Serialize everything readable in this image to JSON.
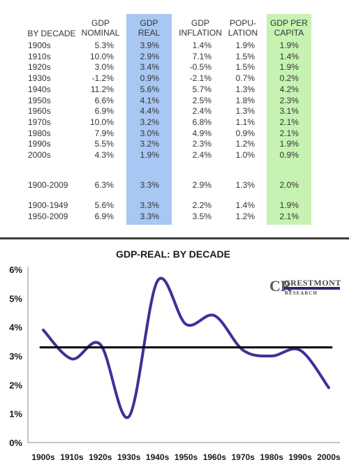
{
  "table": {
    "headers": {
      "decade": [
        "BY DECADE"
      ],
      "nominal": [
        "GDP",
        "NOMINAL"
      ],
      "real": [
        "GDP",
        "REAL"
      ],
      "inflation": [
        "GDP",
        "INFLATION"
      ],
      "population": [
        "POPU-",
        "LATION"
      ],
      "capita": [
        "GDP PER",
        "CAPITA"
      ]
    },
    "rows": [
      {
        "decade": "1900s",
        "nominal": "5.3%",
        "real": "3.9%",
        "inflation": "1.4%",
        "population": "1.9%",
        "capita": "1.9%"
      },
      {
        "decade": "1910s",
        "nominal": "10.0%",
        "real": "2.9%",
        "inflation": "7.1%",
        "population": "1.5%",
        "capita": "1.4%"
      },
      {
        "decade": "1920s",
        "nominal": "3.0%",
        "real": "3.4%",
        "inflation": "-0.5%",
        "population": "1.5%",
        "capita": "1.9%"
      },
      {
        "decade": "1930s",
        "nominal": "-1.2%",
        "real": "0.9%",
        "inflation": "-2.1%",
        "population": "0.7%",
        "capita": "0.2%"
      },
      {
        "decade": "1940s",
        "nominal": "11.2%",
        "real": "5.6%",
        "inflation": "5.7%",
        "population": "1.3%",
        "capita": "4.2%"
      },
      {
        "decade": "1950s",
        "nominal": "6.6%",
        "real": "4.1%",
        "inflation": "2.5%",
        "population": "1.8%",
        "capita": "2.3%"
      },
      {
        "decade": "1960s",
        "nominal": "6.9%",
        "real": "4.4%",
        "inflation": "2.4%",
        "population": "1.3%",
        "capita": "3.1%"
      },
      {
        "decade": "1970s",
        "nominal": "10.0%",
        "real": "3.2%",
        "inflation": "6.8%",
        "population": "1.1%",
        "capita": "2.1%"
      },
      {
        "decade": "1980s",
        "nominal": "7.9%",
        "real": "3.0%",
        "inflation": "4.9%",
        "population": "0.9%",
        "capita": "2.1%"
      },
      {
        "decade": "1990s",
        "nominal": "5.5%",
        "real": "3.2%",
        "inflation": "2.3%",
        "population": "1.2%",
        "capita": "1.9%"
      },
      {
        "decade": "2000s",
        "nominal": "4.3%",
        "real": "1.9%",
        "inflation": "2.4%",
        "population": "1.0%",
        "capita": "0.9%"
      }
    ],
    "summary_rows": [
      {
        "decade": "1900-2009",
        "nominal": "6.3%",
        "real": "3.3%",
        "inflation": "2.9%",
        "population": "1.3%",
        "capita": "2.0%"
      },
      {
        "decade": "1900-1949",
        "nominal": "5.6%",
        "real": "3.3%",
        "inflation": "2.2%",
        "population": "1.4%",
        "capita": "1.9%"
      },
      {
        "decade": "1950-2009",
        "nominal": "6.9%",
        "real": "3.3%",
        "inflation": "3.5%",
        "population": "1.2%",
        "capita": "2.1%"
      }
    ],
    "colors": {
      "real_band": "#a9c7f3",
      "capita_band": "#c6f2b2"
    }
  },
  "logo": {
    "letters": "CR",
    "line1": "CRESTMONT",
    "line2": "RESEARCH"
  },
  "chart_data": {
    "type": "line",
    "title": "GDP-REAL: BY DECADE",
    "categories": [
      "1900s",
      "1910s",
      "1920s",
      "1930s",
      "1940s",
      "1950s",
      "1960s",
      "1970s",
      "1980s",
      "1990s",
      "2000s"
    ],
    "series": [
      {
        "values": [
          3.9,
          2.9,
          3.4,
          0.9,
          5.6,
          4.1,
          4.4,
          3.2,
          3.0,
          3.2,
          1.9
        ],
        "color": "#3b3396",
        "style": "smoothed"
      },
      {
        "values": [
          3.3,
          3.3,
          3.3,
          3.3,
          3.3,
          3.3,
          3.3,
          3.3,
          3.3,
          3.3,
          3.3
        ],
        "color": "#000000",
        "style": "straight"
      }
    ],
    "yticks": [
      "0%",
      "1%",
      "2%",
      "3%",
      "4%",
      "5%",
      "6%"
    ],
    "ylim": [
      0,
      6
    ],
    "grid": false,
    "legend": "none"
  }
}
